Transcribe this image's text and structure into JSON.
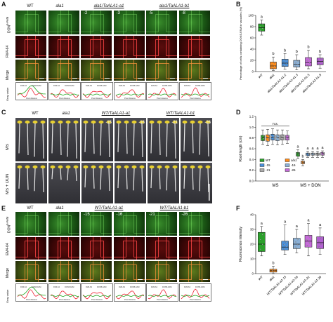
{
  "panels": {
    "A": "A",
    "B": "B",
    "C": "C",
    "D": "D",
    "E": "E",
    "F": "F"
  },
  "panelA": {
    "cols": [
      "WT",
      "ala1",
      "ala1/TaALA1-a1",
      "ala1/TaALA1-b1"
    ],
    "numbers": [
      "-2",
      "-3",
      "-5",
      "-8"
    ],
    "rows": [
      "DON<sup>5-FAM</sup>",
      "FM4-64",
      "Merge",
      "Gray value"
    ],
    "legend": [
      "FM4-64",
      "DON5-FAM"
    ],
    "xlabel": "Pixel distance"
  },
  "panelB": {
    "ylabel": "Percentage of cells containing DON5-FAM in vacuoles (%)",
    "yticks": [
      "0",
      "20",
      "40",
      "60",
      "80",
      "100"
    ]
  },
  "panelC": {
    "cols": [
      "WT",
      "ala1",
      "WT/TaALA1-a1",
      "WT/TaALA1-b1"
    ],
    "numbers": [
      "-15",
      "-16",
      "-21",
      "-26"
    ],
    "rows": [
      "MS",
      "MS + DON"
    ]
  },
  "panelD": {
    "ylabel": "Root length (cm)",
    "yticks": [
      "0.0",
      "0.2",
      "0.4",
      "0.6",
      "0.8",
      "1.0",
      "1.2"
    ],
    "ns": "n.s.",
    "groups": [
      "MS",
      "MS + DON"
    ],
    "legend": [
      "WT",
      "ala1",
      "-15",
      "-16",
      "-21",
      "-26"
    ]
  },
  "panelE": {
    "cols": [
      "WT",
      "ala1",
      "WT/TaALA1-a1",
      "WT/TaALA1-b1"
    ],
    "numbers": [
      "-15",
      "-16",
      "-21",
      "-26"
    ],
    "rows": [
      "DON<sup>5-FAM</sup>",
      "EM4-64",
      "Merge",
      "Gray value"
    ],
    "legend": [
      "FM4-64",
      "DON5-FAM"
    ],
    "xlabel": "Pixel distance"
  },
  "panelF": {
    "ylabel": "Fluorescence intensity",
    "yticks": [
      "0",
      "10",
      "20",
      "30",
      "40"
    ]
  },
  "chart_data": [
    {
      "id": "B",
      "type": "box",
      "ylabel": "Percentage of cells containing DON5-FAM in vacuoles (%)",
      "ylim": [
        0,
        100
      ],
      "categories": [
        "WT",
        "ala1",
        "ala1/TaALA1-a1-2",
        "ala1/TaALA1-a1-3",
        "ala1/TaALA1-b1-5",
        "ala1/TaALA1-b1-8"
      ],
      "colors": [
        "#2ca02c",
        "#ff8c1a",
        "#4a8fd8",
        "#8bb0d6",
        "#c56bd8",
        "#b15fd0"
      ],
      "boxes": [
        {
          "min": 65,
          "q1": 72,
          "median": 78,
          "q3": 85,
          "max": 92
        },
        {
          "min": 2,
          "q1": 5,
          "median": 10,
          "q3": 17,
          "max": 26
        },
        {
          "min": 4,
          "q1": 9,
          "median": 15,
          "q3": 22,
          "max": 32
        },
        {
          "min": 3,
          "q1": 8,
          "median": 13,
          "q3": 20,
          "max": 30
        },
        {
          "min": 5,
          "q1": 10,
          "median": 16,
          "q3": 25,
          "max": 38
        },
        {
          "min": 6,
          "q1": 12,
          "median": 18,
          "q3": 24,
          "max": 30
        }
      ],
      "letters": [
        "a",
        "b",
        "b",
        "b",
        "b",
        "b"
      ]
    },
    {
      "id": "D",
      "type": "box",
      "ylabel": "Root length (cm)",
      "ylim": [
        0,
        1.2
      ],
      "groups": [
        "MS",
        "MS + DON"
      ],
      "series": [
        "WT",
        "ala1",
        "-15",
        "-16",
        "-21",
        "-26"
      ],
      "colors": [
        "#2ca02c",
        "#ff8c1a",
        "#4a8fd8",
        "#8bb0d6",
        "#aaaaaa",
        "#c56bd8"
      ],
      "boxes_MS": [
        {
          "min": 0.68,
          "q1": 0.75,
          "median": 0.8,
          "q3": 0.85,
          "max": 0.95
        },
        {
          "min": 0.66,
          "q1": 0.74,
          "median": 0.8,
          "q3": 0.86,
          "max": 0.96
        },
        {
          "min": 0.68,
          "q1": 0.76,
          "median": 0.81,
          "q3": 0.87,
          "max": 0.97
        },
        {
          "min": 0.67,
          "q1": 0.75,
          "median": 0.81,
          "q3": 0.86,
          "max": 0.95
        },
        {
          "min": 0.68,
          "q1": 0.76,
          "median": 0.81,
          "q3": 0.86,
          "max": 0.95
        },
        {
          "min": 0.7,
          "q1": 0.76,
          "median": 0.81,
          "q3": 0.85,
          "max": 0.93
        }
      ],
      "boxes_DON": [
        {
          "min": 0.42,
          "q1": 0.46,
          "median": 0.5,
          "q3": 0.53,
          "max": 0.58
        },
        {
          "min": 0.28,
          "q1": 0.32,
          "median": 0.35,
          "q3": 0.37,
          "max": 0.4
        },
        {
          "min": 0.44,
          "q1": 0.47,
          "median": 0.5,
          "q3": 0.52,
          "max": 0.55
        },
        {
          "min": 0.44,
          "q1": 0.48,
          "median": 0.5,
          "q3": 0.52,
          "max": 0.55
        },
        {
          "min": 0.44,
          "q1": 0.48,
          "median": 0.5,
          "q3": 0.52,
          "max": 0.55
        },
        {
          "min": 0.44,
          "q1": 0.48,
          "median": 0.51,
          "q3": 0.53,
          "max": 0.56
        }
      ],
      "letters_DON": [
        "a",
        "b",
        "a",
        "a",
        "a",
        "a"
      ]
    },
    {
      "id": "F",
      "type": "box",
      "ylabel": "Fluorescence intensity",
      "ylim": [
        0,
        40
      ],
      "categories": [
        "WT",
        "ala1",
        "WT/TaALA1-a1-15",
        "WT/TaALA1-a1-16",
        "WT/TaALA1-b1-21",
        "WT/TaALA1-b1-26"
      ],
      "colors": [
        "#2ca02c",
        "#ff8c1a",
        "#4a8fd8",
        "#8bb0d6",
        "#c56bd8",
        "#b15fd0"
      ],
      "boxes": [
        {
          "min": 12,
          "q1": 15,
          "median": 20,
          "q3": 28,
          "max": 32
        },
        {
          "min": 0,
          "q1": 1,
          "median": 2,
          "q3": 3,
          "max": 5
        },
        {
          "min": 13,
          "q1": 16,
          "median": 18,
          "q3": 22,
          "max": 33
        },
        {
          "min": 14,
          "q1": 17,
          "median": 20,
          "q3": 24,
          "max": 30
        },
        {
          "min": 12,
          "q1": 18,
          "median": 22,
          "q3": 26,
          "max": 34
        },
        {
          "min": 13,
          "q1": 17,
          "median": 21,
          "q3": 25,
          "max": 31
        }
      ],
      "letters": [
        "a",
        "b",
        "a",
        "a",
        "a",
        "a"
      ]
    }
  ]
}
